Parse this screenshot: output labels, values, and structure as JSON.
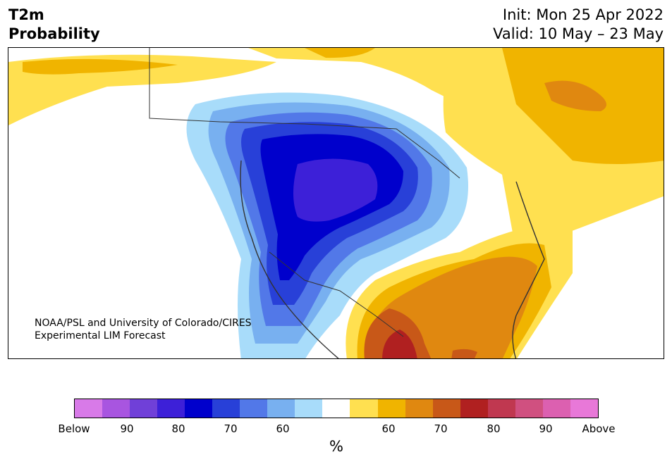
{
  "title": {
    "variable": "T2m",
    "subtitle": "Probability"
  },
  "init_line": "Init: Mon 25 Apr 2022",
  "valid_line": "Valid: 10 May – 23 May",
  "credit": {
    "line1": "NOAA/PSL and University of Colorado/CIRES",
    "line2": "Experimental LIM Forecast"
  },
  "colorbar": {
    "unit": "%",
    "colors": [
      "#d87ae8",
      "#a855e0",
      "#7040d8",
      "#3d20d8",
      "#0000cc",
      "#2840d8",
      "#5278e8",
      "#78b0f0",
      "#a8dcfa",
      "#ffffff",
      "#ffe050",
      "#f0b400",
      "#e08810",
      "#c85818",
      "#b02020",
      "#c03850",
      "#d05080",
      "#dc60b0",
      "#e878d8"
    ],
    "tick_labels": [
      "Below",
      "90",
      "80",
      "70",
      "60",
      "60",
      "70",
      "80",
      "90",
      "Above"
    ]
  },
  "legend_colors": {
    "cold_light": "#a8dcfa",
    "cold_mid": "#78b0f0",
    "cold_med": "#5278e8",
    "cold_strong": "#2840d8",
    "cold_deep": "#0000cc",
    "cold_max": "#3d20d8",
    "warm_light": "#ffe050",
    "warm_mid": "#f0b400",
    "warm_med": "#e08810",
    "warm_strong": "#c85818",
    "warm_deep": "#b02020"
  }
}
